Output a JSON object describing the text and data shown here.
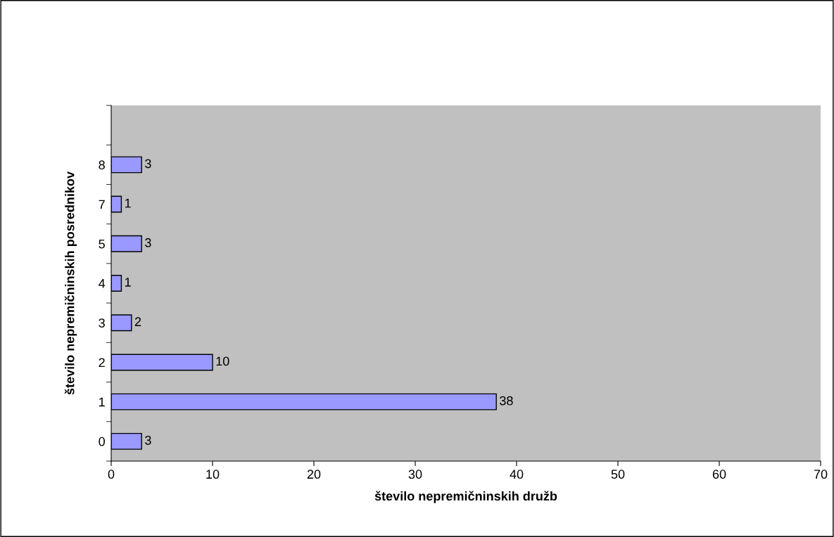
{
  "chart_data": {
    "type": "bar",
    "orientation": "horizontal",
    "xlabel": "število nepremičninskih družb",
    "ylabel": "število nepremičninskih posrednikov",
    "categories": [
      null,
      "8",
      "7",
      "5",
      "4",
      "3",
      "2",
      "1",
      "0"
    ],
    "values": [
      null,
      3,
      1,
      3,
      1,
      2,
      10,
      38,
      3
    ],
    "color": "#9999ff",
    "data_labels": true,
    "grid": false,
    "legend": false,
    "xlim": [
      0,
      70
    ],
    "xticks": [
      0,
      10,
      20,
      30,
      40,
      50,
      60,
      70
    ]
  }
}
